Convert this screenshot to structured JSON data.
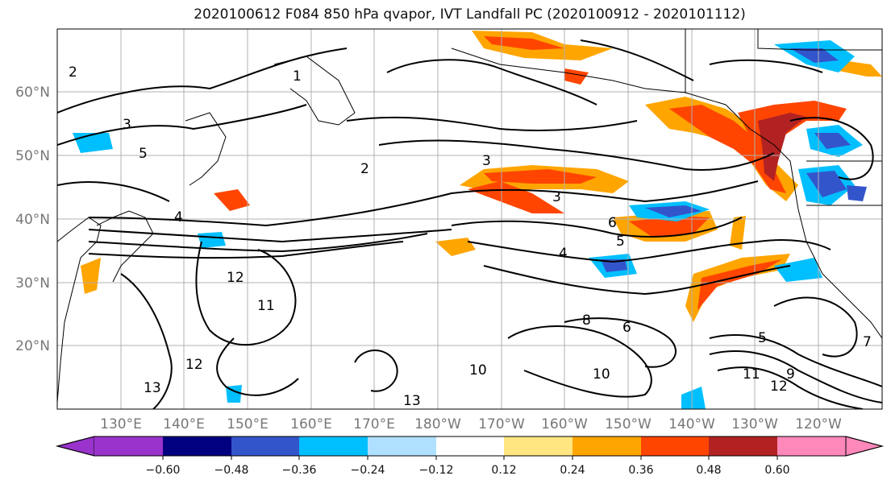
{
  "title": "2020100612 F084 850 hPa qvapor, IVT Landfall PC (2020100912 - 2020101112)",
  "axes": {
    "x_ticks": [
      "130°E",
      "140°E",
      "150°E",
      "160°E",
      "170°E",
      "180°W",
      "170°W",
      "160°W",
      "150°W",
      "140°W",
      "130°W",
      "120°W"
    ],
    "y_ticks": [
      "60°N",
      "50°N",
      "40°N",
      "30°N",
      "20°N"
    ]
  },
  "colorbar": {
    "colors": [
      "#9933cc",
      "#000080",
      "#3355cc",
      "#00bfff",
      "#b0e0ff",
      "#ffffff",
      "#ffe680",
      "#ffa500",
      "#ff4500",
      "#b22222",
      "#ff88bb"
    ],
    "ticks": [
      "−0.60",
      "−0.48",
      "−0.36",
      "−0.24",
      "−0.12",
      "0.12",
      "0.24",
      "0.36",
      "0.48",
      "0.60"
    ]
  },
  "contour_labels": [
    "2",
    "1",
    "3",
    "5",
    "2",
    "3",
    "4",
    "6",
    "5",
    "12",
    "11",
    "10",
    "12",
    "13",
    "11",
    "12",
    "13",
    "9",
    "10",
    "8",
    "6",
    "3",
    "4",
    "5",
    "7"
  ],
  "legend_colors": {
    "positive_low": "#ffe680",
    "positive_mid": "#ffa500",
    "positive_high": "#ff4500",
    "positive_max": "#b22222",
    "negative_low": "#b0e0ff",
    "negative_mid": "#00bfff",
    "negative_high": "#3355cc"
  }
}
